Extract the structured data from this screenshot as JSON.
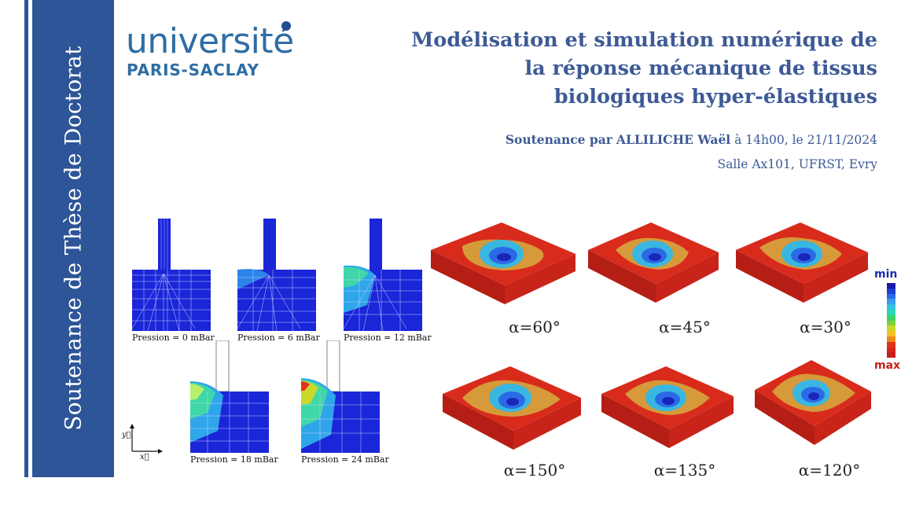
{
  "sidebar": {
    "vertical_title": "Soutenance de Thèse de Doctorat"
  },
  "logo": {
    "line1": "université",
    "line2": "PARIS-SACLAY"
  },
  "title": {
    "lines": [
      "Modélisation et simulation numérique de",
      "la réponse mécanique de tissus",
      "biologiques hyper-élastiques"
    ]
  },
  "presenter": {
    "prefix": "Soutenance par",
    "name": "ALLILICHE Waël",
    "suffix": "à 14h00, le 21/11/2024"
  },
  "location": "Salle Ax101, UFRST, Evry",
  "simulations": {
    "labels": [
      "Pression = 0 mBar",
      "Pression = 6 mBar",
      "Pression = 12 mBar",
      "Pression = 18 mBar",
      "Pression = 24 mBar"
    ],
    "axis_y": "y⃗",
    "axis_x": "x⃗"
  },
  "blocks": {
    "labels": [
      "α=60°",
      "α=45°",
      "α=30°",
      "α=150°",
      "α=135°",
      "α=120°"
    ]
  },
  "legend": {
    "min": "min",
    "max": "max",
    "colors": [
      "#1a1aa8",
      "#1f3fd0",
      "#2b6ae6",
      "#3d9bf0",
      "#36c3e0",
      "#2fd8b4",
      "#3fd36a",
      "#7fd33a",
      "#c9d92c",
      "#f0c224",
      "#f08a1c",
      "#e0341a",
      "#d8241a",
      "#c81e1a"
    ]
  }
}
